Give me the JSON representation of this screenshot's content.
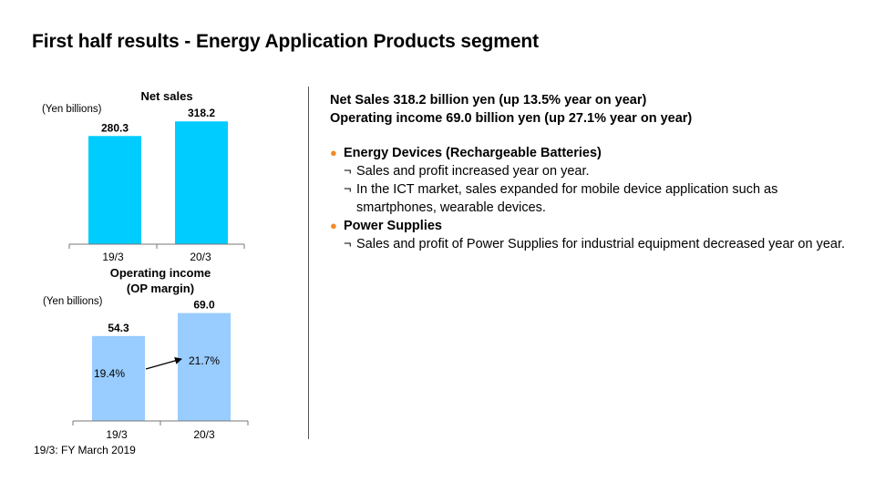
{
  "page": {
    "title": "First half results - Energy Application Products segment",
    "footnote": "19/3: FY March 2019"
  },
  "summary": {
    "line1": "Net Sales 318.2 billion yen (up 13.5% year on year)",
    "line2": "Operating income 69.0 billion yen (up 27.1% year on year)"
  },
  "segments": [
    {
      "bullet": "●",
      "label": "Energy Devices (Rechargeable Batteries)",
      "items": [
        "Sales and profit increased year on year.",
        "In the ICT market, sales expanded for mobile device application such as smartphones, wearable devices."
      ]
    },
    {
      "bullet": "●",
      "label": "Power Supplies",
      "items": [
        "Sales and profit of Power Supplies for industrial equipment decreased year on year."
      ]
    }
  ],
  "sub_mark": "¬",
  "chart_data": [
    {
      "type": "bar",
      "title": "Net sales",
      "unit_label": "(Yen billions)",
      "categories": [
        "19/3",
        "20/3"
      ],
      "values": [
        280.3,
        318.2
      ],
      "data_labels": [
        "280.3",
        "318.2"
      ],
      "ylim": [
        0,
        340
      ],
      "color": "#00CCFF"
    },
    {
      "type": "bar",
      "title_lines": [
        "Operating income",
        "(OP margin)"
      ],
      "unit_label": "(Yen billions)",
      "categories": [
        "19/3",
        "20/3"
      ],
      "values": [
        54.3,
        69.0
      ],
      "data_labels": [
        "54.3",
        "69.0"
      ],
      "margins": [
        "19.4%",
        "21.7%"
      ],
      "ylim": [
        0,
        74
      ],
      "color": "#99CCFF"
    }
  ]
}
